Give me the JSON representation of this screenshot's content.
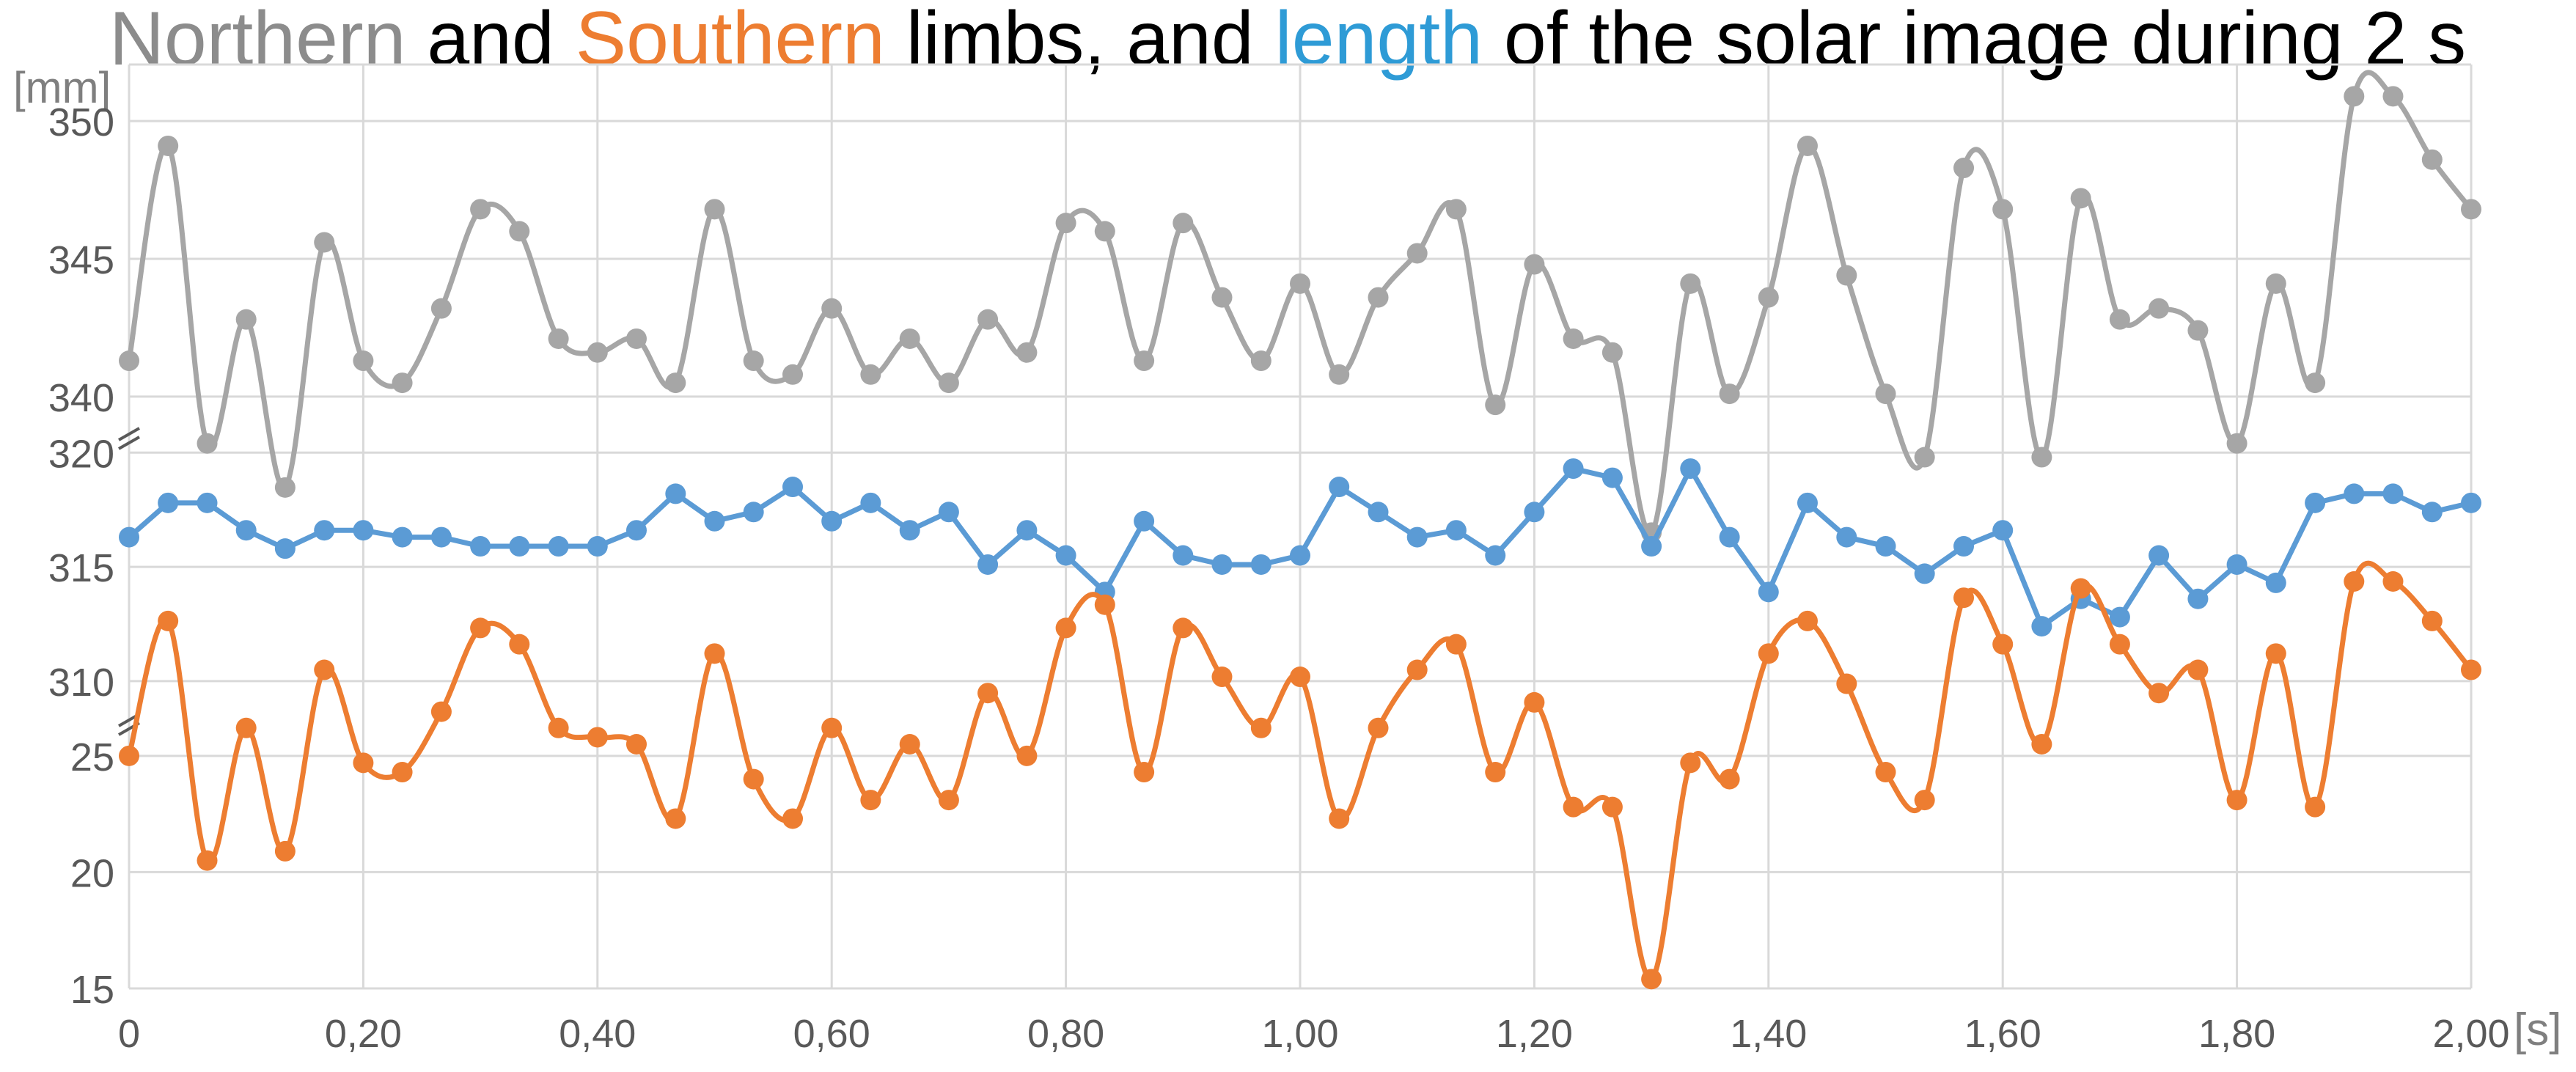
{
  "chart_data": {
    "type": "line",
    "title": {
      "segments": [
        {
          "text": "Northern",
          "color": "#8c8c8c"
        },
        {
          "text": " and ",
          "color": "#000000"
        },
        {
          "text": "Southern",
          "color": "#ed7d31"
        },
        {
          "text": " limbs, and ",
          "color": "#000000"
        },
        {
          "text": "length",
          "color": "#2e9bd6"
        },
        {
          "text": " of the solar image during 2 s",
          "color": "#000000"
        }
      ]
    },
    "ylabel": "[mm]",
    "xlabel": "[s]",
    "grid": true,
    "x": [
      0,
      0.0333,
      0.0667,
      0.1,
      0.1333,
      0.1667,
      0.2,
      0.2333,
      0.2667,
      0.3,
      0.3333,
      0.3667,
      0.4,
      0.4333,
      0.4667,
      0.5,
      0.5333,
      0.5667,
      0.6,
      0.6333,
      0.6667,
      0.7,
      0.7333,
      0.7667,
      0.8,
      0.8333,
      0.8667,
      0.9,
      0.9333,
      0.9667,
      1.0,
      1.0333,
      1.0667,
      1.1,
      1.1333,
      1.1667,
      1.2,
      1.2333,
      1.2667,
      1.3,
      1.3333,
      1.3667,
      1.4,
      1.4333,
      1.4667,
      1.5,
      1.5333,
      1.5667,
      1.6,
      1.6333,
      1.6667,
      1.7,
      1.7333,
      1.7667,
      1.8,
      1.8333,
      1.8667,
      1.9,
      1.9333,
      1.9667,
      2.0
    ],
    "x_ticks": [
      0,
      0.2,
      0.4,
      0.6,
      0.8,
      1.0,
      1.2,
      1.4,
      1.6,
      1.8,
      2.0
    ],
    "x_tick_labels": [
      "0",
      "0,20",
      "0,40",
      "0,60",
      "0,80",
      "1,00",
      "1,20",
      "1,40",
      "1,60",
      "1,80",
      "2,00"
    ],
    "xlim": [
      0,
      2
    ],
    "bands": [
      {
        "name": "north",
        "ylim": [
          338,
          352
        ],
        "ticks": [
          340,
          345,
          350
        ],
        "tick_labels": [
          "340",
          "345",
          "350"
        ]
      },
      {
        "name": "length",
        "ylim": [
          309,
          322
        ],
        "ticks": [
          310,
          315,
          320
        ],
        "tick_labels": [
          "310",
          "315",
          "320"
        ]
      },
      {
        "name": "south",
        "ylim": [
          15,
          29
        ],
        "ticks": [
          15,
          20,
          25
        ],
        "tick_labels": [
          "15",
          "20",
          "25"
        ]
      }
    ],
    "series": [
      {
        "key": "northern",
        "band": "north",
        "smooth": true,
        "color": "#a6a6a6",
        "values": [
          341.3,
          349.1,
          338.3,
          342.8,
          336.7,
          345.6,
          341.3,
          340.5,
          343.2,
          346.8,
          346.0,
          342.1,
          341.6,
          342.1,
          340.5,
          346.8,
          341.3,
          340.8,
          343.2,
          340.8,
          342.1,
          340.5,
          342.8,
          341.6,
          346.3,
          346.0,
          341.3,
          346.3,
          343.6,
          341.3,
          344.1,
          340.8,
          343.6,
          345.2,
          346.8,
          339.7,
          344.8,
          342.1,
          341.6,
          316.5,
          344.1,
          340.1,
          343.6,
          349.1,
          344.4,
          340.1,
          337.8,
          348.3,
          346.8,
          337.8,
          347.2,
          342.8,
          343.2,
          342.4,
          338.3,
          344.1,
          340.5,
          350.9,
          350.9,
          348.6,
          346.8
        ]
      },
      {
        "key": "length",
        "band": "length",
        "smooth": false,
        "color": "#5b9bd5",
        "values": [
          316.3,
          317.8,
          317.8,
          316.6,
          315.8,
          316.6,
          316.6,
          316.3,
          316.3,
          315.9,
          315.9,
          315.9,
          315.9,
          316.6,
          318.2,
          317.0,
          317.4,
          318.5,
          317.0,
          317.8,
          316.6,
          317.4,
          315.1,
          316.6,
          315.5,
          313.9,
          317.0,
          315.5,
          315.1,
          315.1,
          315.5,
          318.5,
          317.4,
          316.3,
          316.6,
          315.5,
          317.4,
          319.3,
          318.9,
          315.9,
          319.3,
          316.3,
          313.9,
          317.8,
          316.3,
          315.9,
          314.7,
          315.9,
          316.6,
          312.4,
          313.6,
          312.8,
          315.5,
          313.6,
          315.1,
          314.3,
          317.8,
          318.2,
          318.2,
          317.4,
          317.8
        ]
      },
      {
        "key": "southern",
        "band": "south",
        "smooth": true,
        "color": "#ed7d31",
        "values": [
          25.0,
          30.8,
          20.5,
          26.2,
          20.9,
          28.7,
          24.7,
          24.3,
          26.9,
          30.5,
          29.8,
          26.2,
          25.8,
          25.5,
          22.3,
          29.4,
          24.0,
          22.3,
          26.2,
          23.1,
          25.5,
          23.1,
          27.7,
          25.0,
          30.5,
          31.5,
          24.3,
          30.5,
          28.4,
          26.2,
          28.4,
          22.3,
          26.2,
          28.7,
          29.8,
          24.3,
          27.3,
          22.8,
          22.8,
          15.4,
          24.7,
          24.0,
          29.4,
          30.8,
          28.1,
          24.3,
          23.1,
          31.8,
          29.8,
          25.5,
          32.2,
          29.8,
          27.7,
          28.7,
          23.1,
          29.4,
          22.8,
          32.5,
          32.5,
          30.8,
          28.7
        ]
      }
    ]
  }
}
